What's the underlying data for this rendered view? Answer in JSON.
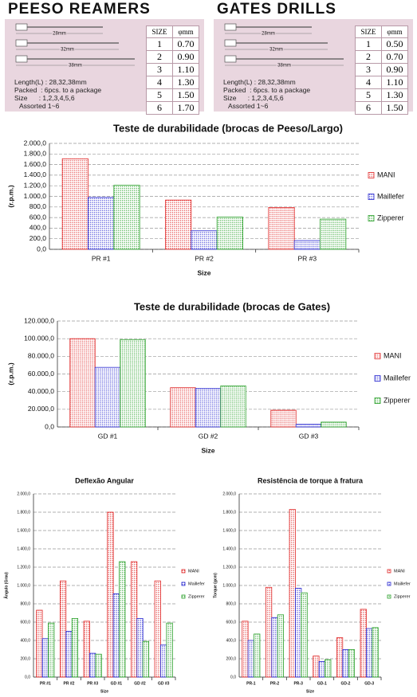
{
  "products": [
    {
      "title": "PEESO REAMERS",
      "drawing_labels": [
        "28mm",
        "32mm",
        "38mm"
      ],
      "table": {
        "header": [
          "SIZE",
          "φmm"
        ],
        "rows": [
          [
            "1",
            "0.70"
          ],
          [
            "2",
            "0.90"
          ],
          [
            "3",
            "1.10"
          ],
          [
            "4",
            "1.30"
          ],
          [
            "5",
            "1.50"
          ],
          [
            "6",
            "1.70"
          ]
        ]
      },
      "specs": [
        "Length(L) : 28,32,38mm",
        "Packed  : 6pcs. to a package",
        "Size      : 1,2,3,4,5,6",
        "Assorted 1~6"
      ]
    },
    {
      "title": "GATES DRILLS",
      "drawing_labels": [
        "28mm",
        "32mm",
        "38mm"
      ],
      "table": {
        "header": [
          "SIZE",
          "φmm"
        ],
        "rows": [
          [
            "1",
            "0.50"
          ],
          [
            "2",
            "0.70"
          ],
          [
            "3",
            "0.90"
          ],
          [
            "4",
            "1.10"
          ],
          [
            "5",
            "1.30"
          ],
          [
            "6",
            "1.50"
          ]
        ]
      },
      "specs": [
        "Length(L) : 28,32,38mm",
        "Packed  : 6pcs. to a package",
        "Size      : 1,2,3,4,5,6",
        "Assorted 1~6"
      ]
    }
  ],
  "chart_data": [
    {
      "type": "bar",
      "title": "Teste de durabilidade (brocas de Peeso/Largo)",
      "y_label": "(r.p.m.)",
      "x_label": "Size",
      "categories": [
        "PR #1",
        "PR #2",
        "PR #3"
      ],
      "series": [
        {
          "name": "MANI",
          "color": "#e02828",
          "values": [
            1710,
            930,
            790
          ]
        },
        {
          "name": "Maillefer",
          "color": "#2828d0",
          "values": [
            980,
            350,
            165
          ]
        },
        {
          "name": "Zipperer",
          "color": "#28a028",
          "values": [
            1210,
            610,
            570
          ]
        }
      ],
      "ylim": [
        0,
        2000
      ],
      "grid": true,
      "yticks": [
        {
          "value": 0,
          "label": "0,0"
        },
        {
          "value": 200,
          "label": "200,0"
        },
        {
          "value": 400,
          "label": "400,0"
        },
        {
          "value": 600,
          "label": "600,0"
        },
        {
          "value": 800,
          "label": "800,0"
        },
        {
          "value": 1000,
          "label": "1.000,0"
        },
        {
          "value": 1200,
          "label": "1.200,0"
        },
        {
          "value": 1400,
          "label": "1.400,0"
        },
        {
          "value": 1600,
          "label": "1.600,0"
        },
        {
          "value": 1800,
          "label": "1.800,0"
        },
        {
          "value": 2000,
          "label": "2.000,0"
        }
      ]
    },
    {
      "type": "bar",
      "title": "Teste de durabilidade (brocas de Gates)",
      "y_label": "(r.p.m.)",
      "x_label": "Size",
      "categories": [
        "GD #1",
        "GD #2",
        "GD #3"
      ],
      "series": [
        {
          "name": "MANI",
          "color": "#e02828",
          "values": [
            100000,
            44500,
            19000
          ]
        },
        {
          "name": "Maillefer",
          "color": "#2828d0",
          "values": [
            67500,
            43500,
            3000
          ]
        },
        {
          "name": "Zipperer",
          "color": "#28a028",
          "values": [
            99000,
            46500,
            5500
          ]
        }
      ],
      "ylim": [
        0,
        120000
      ],
      "grid": true,
      "yticks": [
        {
          "value": 0,
          "label": "0,0"
        },
        {
          "value": 20000,
          "label": "20.000,0"
        },
        {
          "value": 40000,
          "label": "40.000,0"
        },
        {
          "value": 60000,
          "label": "60.000,0"
        },
        {
          "value": 80000,
          "label": "80.000,0"
        },
        {
          "value": 100000,
          "label": "100.000,0"
        },
        {
          "value": 120000,
          "label": "120.000,0"
        }
      ]
    },
    {
      "type": "bar",
      "title": "Deflexão Angular",
      "y_label": "Ângulo (Grau)",
      "x_label": "Size",
      "categories": [
        "PR #1",
        "PR #2",
        "PR #3",
        "GD #1",
        "GD #2",
        "GD #3"
      ],
      "series": [
        {
          "name": "MANI",
          "color": "#e02828",
          "values": [
            730,
            1050,
            610,
            1800,
            1260,
            1050
          ]
        },
        {
          "name": "Maillefer",
          "color": "#2828d0",
          "values": [
            420,
            500,
            260,
            910,
            640,
            350
          ]
        },
        {
          "name": "Zipperer",
          "color": "#28a028",
          "values": [
            590,
            640,
            250,
            1260,
            390,
            590
          ]
        }
      ],
      "ylim": [
        0,
        2000
      ],
      "grid": true,
      "yticks": [
        {
          "value": 0,
          "label": "0,0"
        },
        {
          "value": 200,
          "label": "200,0"
        },
        {
          "value": 400,
          "label": "400,0"
        },
        {
          "value": 600,
          "label": "600,0"
        },
        {
          "value": 800,
          "label": "800,0"
        },
        {
          "value": 1000,
          "label": "1.000,0"
        },
        {
          "value": 1200,
          "label": "1.200,0"
        },
        {
          "value": 1400,
          "label": "1.400,0"
        },
        {
          "value": 1600,
          "label": "1.600,0"
        },
        {
          "value": 1800,
          "label": "1.800,0"
        },
        {
          "value": 2000,
          "label": "2.000,0"
        }
      ]
    },
    {
      "type": "bar",
      "title": "Resistência de torque à fratura",
      "y_label": "Torque (gcm)",
      "x_label": "Size",
      "categories": [
        "PR-1",
        "PR-2",
        "PR-3",
        "GD-1",
        "GD-2",
        "GD-3"
      ],
      "series": [
        {
          "name": "MANI",
          "color": "#e02828",
          "values": [
            610,
            980,
            1830,
            230,
            430,
            740
          ]
        },
        {
          "name": "Maillefer",
          "color": "#2828d0",
          "values": [
            400,
            650,
            970,
            170,
            300,
            530
          ]
        },
        {
          "name": "Zipperer",
          "color": "#28a028",
          "values": [
            470,
            680,
            920,
            190,
            300,
            540
          ]
        }
      ],
      "ylim": [
        0,
        2000
      ],
      "grid": true,
      "yticks": [
        {
          "value": 0,
          "label": "0,0"
        },
        {
          "value": 200,
          "label": "200,0"
        },
        {
          "value": 400,
          "label": "400,0"
        },
        {
          "value": 600,
          "label": "600,0"
        },
        {
          "value": 800,
          "label": "800,0"
        },
        {
          "value": 1000,
          "label": "1.000,0"
        },
        {
          "value": 1200,
          "label": "1.200,0"
        },
        {
          "value": 1400,
          "label": "1.400,0"
        },
        {
          "value": 1600,
          "label": "1.600,0"
        },
        {
          "value": 1800,
          "label": "1.800,0"
        },
        {
          "value": 2000,
          "label": "2.000,0"
        }
      ]
    }
  ]
}
